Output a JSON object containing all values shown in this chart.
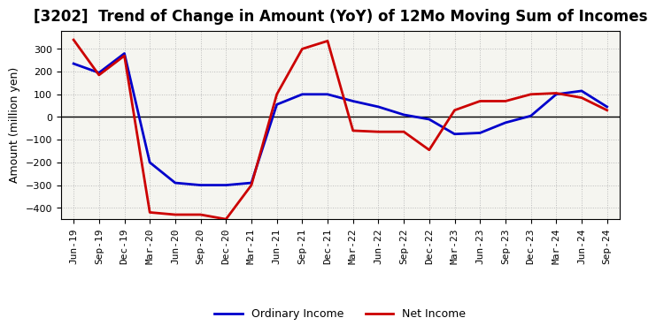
{
  "title": "[3202]  Trend of Change in Amount (YoY) of 12Mo Moving Sum of Incomes",
  "ylabel": "Amount (million yen)",
  "x_labels": [
    "Jun-19",
    "Sep-19",
    "Dec-19",
    "Mar-20",
    "Jun-20",
    "Sep-20",
    "Dec-20",
    "Mar-21",
    "Jun-21",
    "Sep-21",
    "Dec-21",
    "Mar-22",
    "Jun-22",
    "Sep-22",
    "Dec-22",
    "Mar-23",
    "Jun-23",
    "Sep-23",
    "Dec-23",
    "Mar-24",
    "Jun-24",
    "Sep-24"
  ],
  "ordinary_income": [
    235,
    195,
    280,
    -200,
    -290,
    -300,
    -300,
    -290,
    55,
    100,
    100,
    70,
    45,
    10,
    -10,
    -75,
    -70,
    -25,
    5,
    100,
    115,
    45
  ],
  "net_income": [
    340,
    185,
    270,
    -420,
    -430,
    -430,
    -450,
    -300,
    100,
    300,
    335,
    -60,
    -65,
    -65,
    -145,
    30,
    70,
    70,
    100,
    105,
    85,
    30
  ],
  "ordinary_color": "#0000CC",
  "net_color": "#CC0000",
  "ylim": [
    -450,
    380
  ],
  "yticks": [
    -400,
    -300,
    -200,
    -100,
    0,
    100,
    200,
    300
  ],
  "background_color": "#FFFFFF",
  "plot_bg_color": "#F5F5F0",
  "grid_color": "#BBBBBB",
  "legend_labels": [
    "Ordinary Income",
    "Net Income"
  ],
  "line_width": 2.0,
  "title_fontsize": 12,
  "ylabel_fontsize": 9,
  "tick_fontsize": 8
}
